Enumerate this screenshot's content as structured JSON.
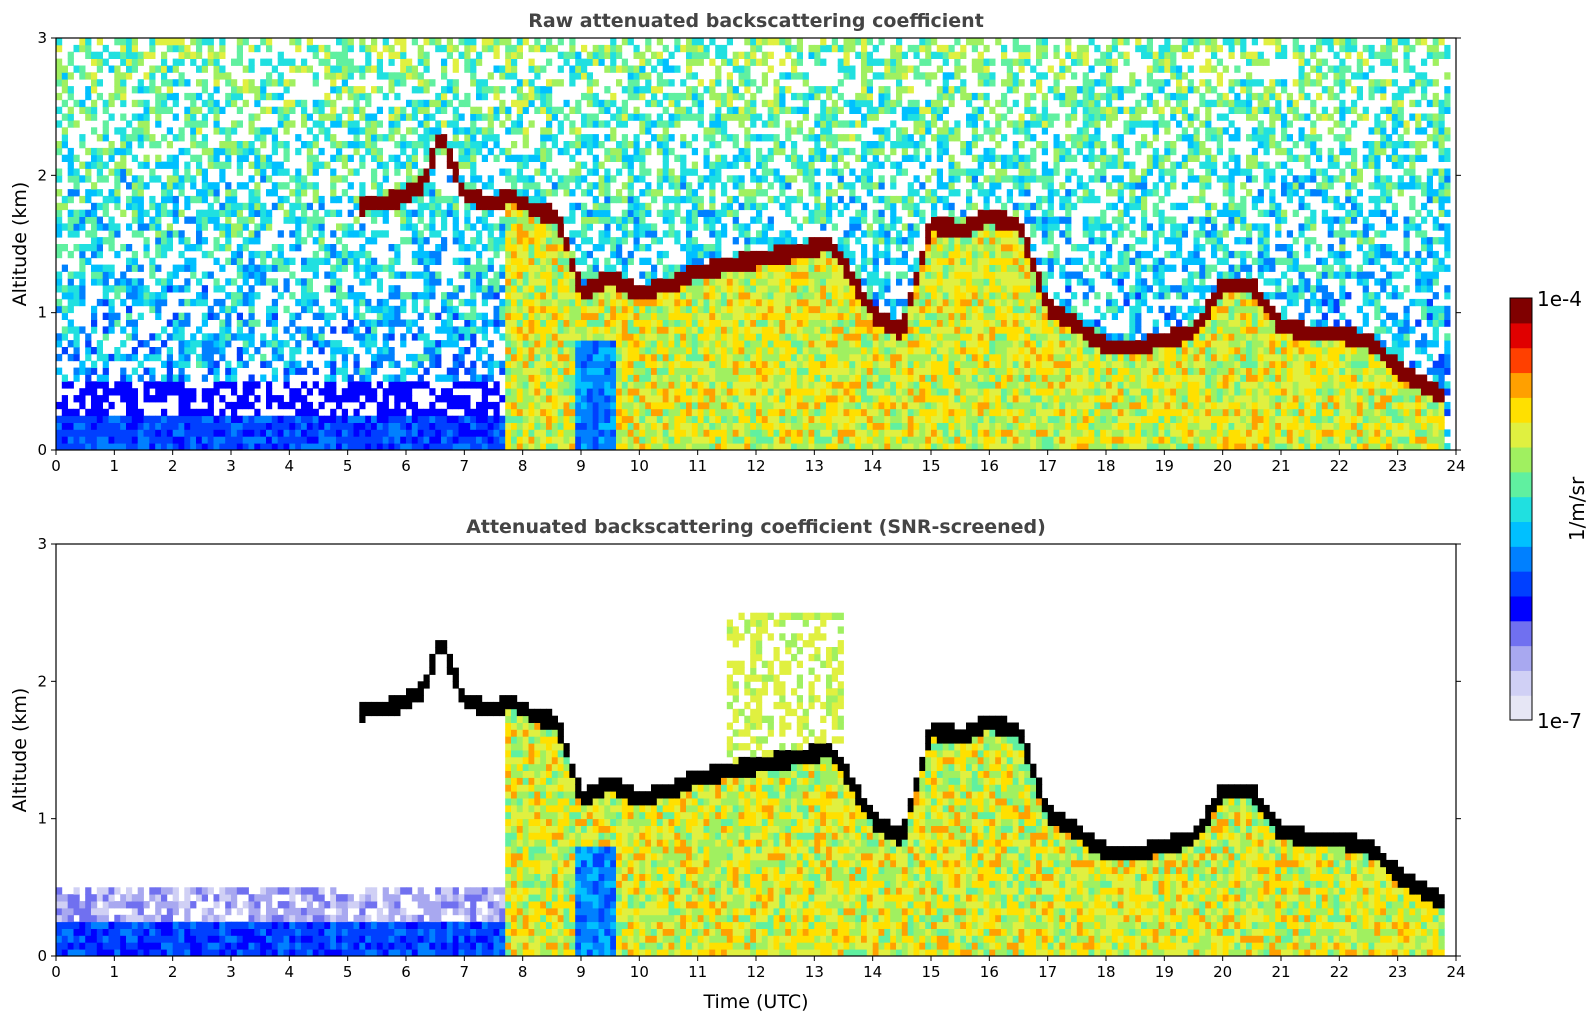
{
  "colors": {
    "jet": [
      "#e6e6f5",
      "#d0d0f5",
      "#a8a8f0",
      "#7070f0",
      "#0000ff",
      "#0040ff",
      "#0080ff",
      "#00c0ff",
      "#20e0e0",
      "#60f0a0",
      "#a0f060",
      "#e0f040",
      "#ffe000",
      "#ffa000",
      "#ff4000",
      "#e00000",
      "#800000"
    ],
    "black": "#000000",
    "title": "#444444"
  },
  "colorbar": {
    "max_label": "1e-4",
    "min_label": "1e-7",
    "unit_label": "1/m/sr"
  },
  "chart_data": [
    {
      "type": "heatmap",
      "title": "Raw attenuated backscattering coefficient",
      "xlabel": "",
      "ylabel": "Altitude (km)",
      "xlim": [
        0,
        24
      ],
      "ylim": [
        0,
        3
      ],
      "xticks": [
        "0",
        "1",
        "2",
        "3",
        "4",
        "5",
        "6",
        "7",
        "8",
        "9",
        "10",
        "11",
        "12",
        "13",
        "14",
        "15",
        "16",
        "17",
        "18",
        "19",
        "20",
        "21",
        "22",
        "23",
        "24"
      ],
      "yticks": [
        "0",
        "1",
        "2",
        "3"
      ],
      "colorscale": "log",
      "clim": [
        "1e-7",
        "1e-4"
      ],
      "layer_top_km": {
        "x": [
          5.2,
          5.6,
          6.0,
          6.3,
          6.6,
          7.0,
          7.5,
          7.8,
          8.2,
          8.6,
          9.0,
          9.5,
          10.0,
          10.5,
          11.0,
          13.3,
          14.0,
          14.5,
          15.0,
          15.5,
          16.0,
          16.5,
          17.0,
          17.5,
          18.0,
          18.5,
          19.0,
          19.5,
          20.0,
          20.5,
          21.0,
          21.5,
          22.0,
          22.5,
          23.0,
          23.5,
          23.8
        ],
        "y": [
          1.78,
          1.8,
          1.85,
          1.95,
          2.3,
          1.85,
          1.8,
          1.85,
          1.75,
          1.7,
          1.15,
          1.25,
          1.15,
          1.2,
          1.3,
          1.5,
          1.0,
          0.85,
          1.65,
          1.6,
          1.7,
          1.65,
          1.05,
          0.9,
          0.75,
          0.75,
          0.8,
          0.85,
          1.2,
          1.2,
          0.9,
          0.85,
          0.85,
          0.8,
          0.6,
          0.45,
          0.4
        ]
      }
    },
    {
      "type": "heatmap",
      "title": "Attenuated backscattering coefficient (SNR-screened)",
      "xlabel": "Time (UTC)",
      "ylabel": "Altitude (km)",
      "xlim": [
        0,
        24
      ],
      "ylim": [
        0,
        3
      ],
      "xticks": [
        "0",
        "1",
        "2",
        "3",
        "4",
        "5",
        "6",
        "7",
        "8",
        "9",
        "10",
        "11",
        "12",
        "13",
        "14",
        "15",
        "16",
        "17",
        "18",
        "19",
        "20",
        "21",
        "22",
        "23",
        "24"
      ],
      "yticks": [
        "0",
        "1",
        "2",
        "3"
      ],
      "colorscale": "log",
      "clim": [
        "1e-7",
        "1e-4"
      ]
    }
  ]
}
